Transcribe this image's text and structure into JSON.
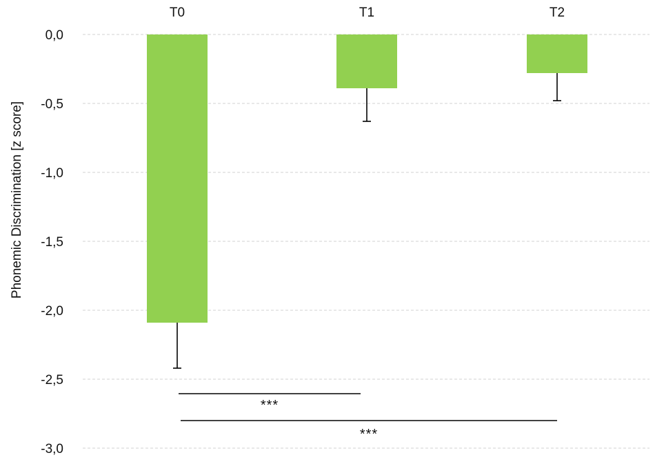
{
  "chart_data": {
    "type": "bar",
    "categories": [
      "T0",
      "T1",
      "T2"
    ],
    "values": [
      -2.09,
      -0.39,
      -0.28
    ],
    "error_bars": [
      0.33,
      0.24,
      0.2
    ],
    "error_direction": "down",
    "ylabel": "Phonemic Discrimination [z score]",
    "ylim": [
      -3.0,
      0.0
    ],
    "yticks": [
      0.0,
      -0.5,
      -1.0,
      -1.5,
      -2.0,
      -2.5,
      -3.0
    ],
    "ytick_labels": [
      "0,0",
      "-0,5",
      "-1,0",
      "-1,5",
      "-2,0",
      "-2,5",
      "-3,0"
    ],
    "category_label_position": "top",
    "grid": true,
    "grid_style": "dashed",
    "legend": false,
    "bar_color": "#92d050",
    "significance": [
      {
        "from": "T0",
        "to": "T1",
        "label": "***"
      },
      {
        "from": "T0",
        "to": "T2",
        "label": "***"
      }
    ]
  }
}
